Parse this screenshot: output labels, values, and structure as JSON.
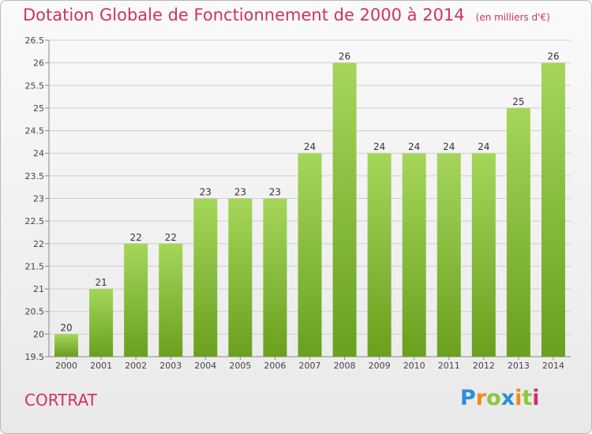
{
  "header": {
    "title": "Dotation Globale de Fonctionnement de 2000 à 2014",
    "unit": "(en milliers d'€)"
  },
  "footer": {
    "commune": "CORTRAT",
    "logo_text": "Proxiti"
  },
  "colors": {
    "title": "#d0306a",
    "bar_light": "#a5d65a",
    "bar_dark": "#6aa01e",
    "grid": "#cfcfcf"
  },
  "chart_data": {
    "type": "bar",
    "title": "Dotation Globale de Fonctionnement de 2000 à 2014",
    "xlabel": "",
    "ylabel": "",
    "categories": [
      "2000",
      "2001",
      "2002",
      "2003",
      "2004",
      "2005",
      "2006",
      "2007",
      "2008",
      "2009",
      "2010",
      "2011",
      "2012",
      "2013",
      "2014"
    ],
    "values": [
      20,
      21,
      22,
      22,
      23,
      23,
      23,
      24,
      26,
      24,
      24,
      24,
      24,
      25,
      26
    ],
    "data_labels": [
      "20",
      "21",
      "22",
      "22",
      "23",
      "23",
      "23",
      "24",
      "26",
      "24",
      "24",
      "24",
      "24",
      "25",
      "26"
    ],
    "ylim": [
      19.5,
      26.5
    ],
    "yticks": [
      "19.5",
      "20",
      "20.5",
      "21",
      "21.5",
      "22",
      "22.5",
      "23",
      "23.5",
      "24",
      "24.5",
      "25",
      "25.5",
      "26",
      "26.5"
    ],
    "grid": true,
    "legend": "none"
  }
}
